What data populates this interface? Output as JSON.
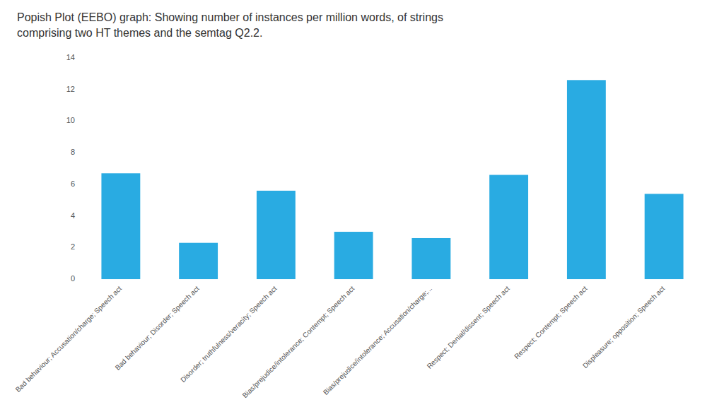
{
  "chart_data": {
    "type": "bar",
    "title": "Popish Plot (EEBO) graph: Showing number of instances per million words, of strings",
    "subtitle": "comprising two HT themes and the semtag Q2.2.",
    "categories": [
      "Bad behaviour; Accusation/charge; Speech act",
      "Bad behaviour; Disorder; Speech act",
      "Disorder; truthfulness/veracity; Speech act",
      "Bias/prejudice/intolerance; Contempt; Speech act",
      "Bias/prejudice/intolerance; Accusation/charge;...",
      "Respect; Denial/dissent; Speech act",
      "Respect; Contempt; Speech act",
      "Displeasure; opposition; Speech act"
    ],
    "values": [
      6.7,
      2.3,
      5.6,
      3.0,
      2.6,
      6.6,
      12.6,
      5.4
    ],
    "color": "#29ABE2",
    "ylim": [
      0,
      14
    ],
    "yticks": [
      0,
      2,
      4,
      6,
      8,
      10,
      12,
      14
    ],
    "grid": false
  }
}
